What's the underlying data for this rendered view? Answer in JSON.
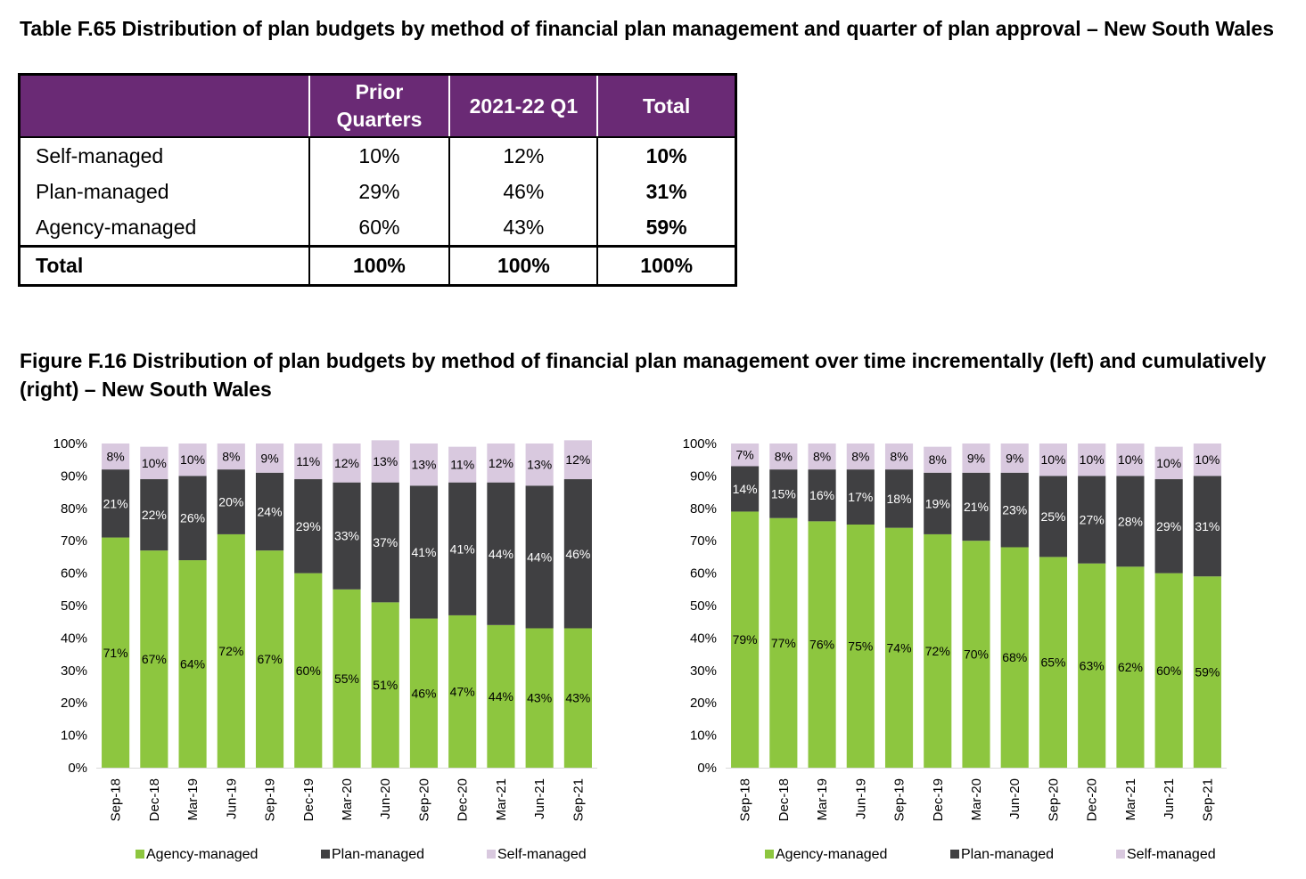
{
  "table": {
    "title": "Table F.65 Distribution of plan budgets by method of financial plan management and quarter of plan approval – New South Wales",
    "headers": [
      "",
      "Prior Quarters",
      "2021-22 Q1",
      "Total"
    ],
    "rows": [
      [
        "Self-managed",
        "10%",
        "12%",
        "10%"
      ],
      [
        "Plan-managed",
        "29%",
        "46%",
        "31%"
      ],
      [
        "Agency-managed",
        "60%",
        "43%",
        "59%"
      ]
    ],
    "total_row": [
      "Total",
      "100%",
      "100%",
      "100%"
    ]
  },
  "figure": {
    "title": "Figure F.16 Distribution of plan budgets by method of financial plan management over time incrementally (left) and cumulatively (right) – New South Wales"
  },
  "colors": {
    "agency": "#8dc63f",
    "plan": "#404042",
    "self": "#d9c9df",
    "header_bg": "#6a2a75"
  },
  "chart_data": [
    {
      "type": "bar",
      "stacked": true,
      "categories": [
        "Sep-18",
        "Dec-18",
        "Mar-19",
        "Jun-19",
        "Sep-19",
        "Dec-19",
        "Mar-20",
        "Jun-20",
        "Sep-20",
        "Dec-20",
        "Mar-21",
        "Jun-21",
        "Sep-21"
      ],
      "series": [
        {
          "name": "Agency-managed",
          "values": [
            71,
            67,
            64,
            72,
            67,
            60,
            55,
            51,
            46,
            47,
            44,
            43,
            43
          ]
        },
        {
          "name": "Plan-managed",
          "values": [
            21,
            22,
            26,
            20,
            24,
            29,
            33,
            37,
            41,
            41,
            44,
            44,
            46
          ]
        },
        {
          "name": "Self-managed",
          "values": [
            8,
            10,
            10,
            8,
            9,
            11,
            12,
            13,
            13,
            11,
            12,
            13,
            12
          ]
        }
      ],
      "yticks": [
        "0%",
        "10%",
        "20%",
        "30%",
        "40%",
        "50%",
        "60%",
        "70%",
        "80%",
        "90%",
        "100%"
      ],
      "ylim": [
        0,
        100
      ],
      "legend_position": "bottom"
    },
    {
      "type": "bar",
      "stacked": true,
      "categories": [
        "Sep-18",
        "Dec-18",
        "Mar-19",
        "Jun-19",
        "Sep-19",
        "Dec-19",
        "Mar-20",
        "Jun-20",
        "Sep-20",
        "Dec-20",
        "Mar-21",
        "Jun-21",
        "Sep-21"
      ],
      "series": [
        {
          "name": "Agency-managed",
          "values": [
            79,
            77,
            76,
            75,
            74,
            72,
            70,
            68,
            65,
            63,
            62,
            60,
            59
          ]
        },
        {
          "name": "Plan-managed",
          "values": [
            14,
            15,
            16,
            17,
            18,
            19,
            21,
            23,
            25,
            27,
            28,
            29,
            31
          ]
        },
        {
          "name": "Self-managed",
          "values": [
            7,
            8,
            8,
            8,
            8,
            8,
            9,
            9,
            10,
            10,
            10,
            10,
            10
          ]
        }
      ],
      "yticks": [
        "0%",
        "10%",
        "20%",
        "30%",
        "40%",
        "50%",
        "60%",
        "70%",
        "80%",
        "90%",
        "100%"
      ],
      "ylim": [
        0,
        100
      ],
      "legend_position": "bottom"
    }
  ]
}
